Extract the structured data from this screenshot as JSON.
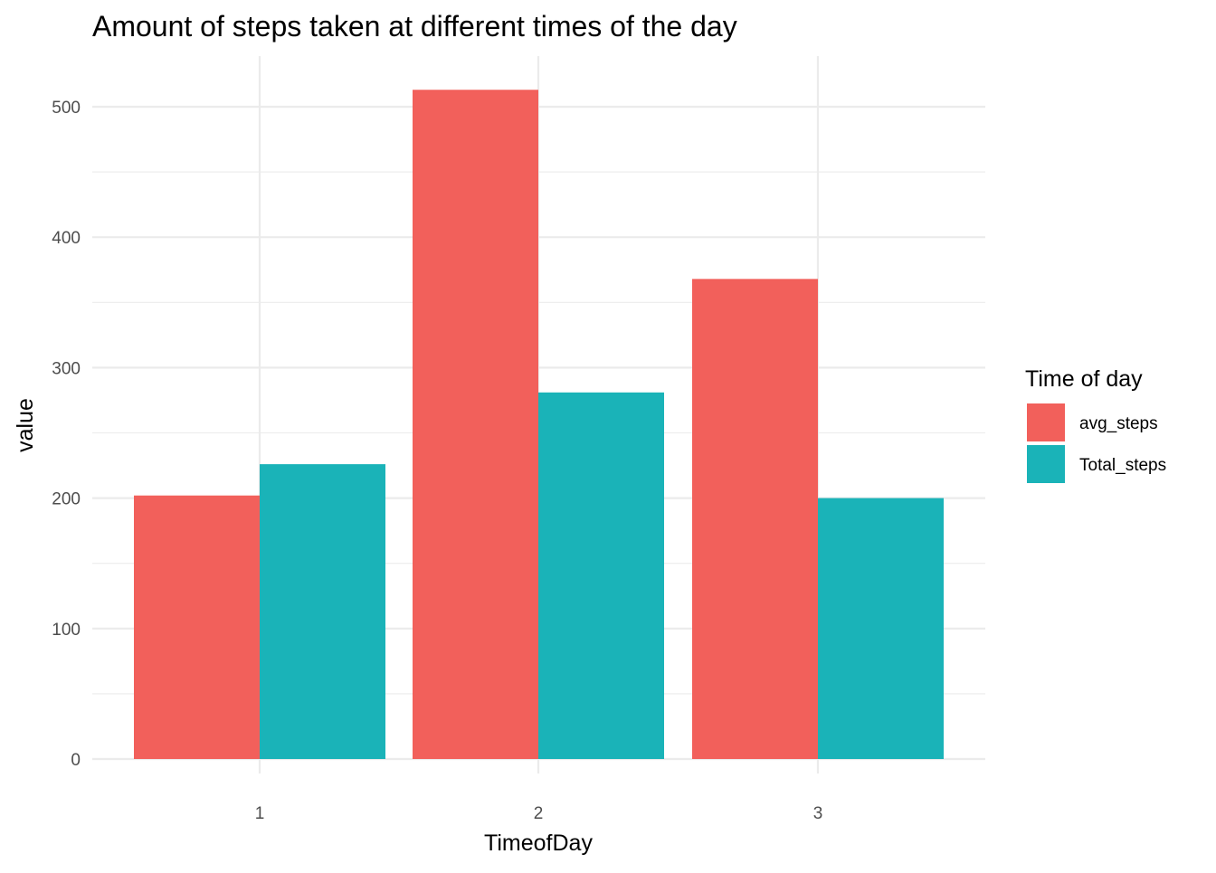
{
  "chart_data": {
    "type": "bar",
    "title": "Amount of steps taken at different times of the day",
    "xlabel": "TimeofDay",
    "ylabel": "value",
    "categories": [
      "1",
      "2",
      "3"
    ],
    "series": [
      {
        "name": "avg_steps",
        "color": "#F2605B",
        "values": [
          202,
          513,
          368
        ]
      },
      {
        "name": "Total_steps",
        "color": "#1AB3B8",
        "values": [
          226,
          281,
          200
        ]
      }
    ],
    "ylim": [
      0,
      540
    ],
    "yticks": [
      0,
      100,
      200,
      300,
      400,
      500
    ],
    "ytick_labels": [
      "0",
      "100",
      "200",
      "300",
      "400",
      "500"
    ],
    "grid": true,
    "legend": {
      "title": "Time of day",
      "position": "right"
    }
  }
}
